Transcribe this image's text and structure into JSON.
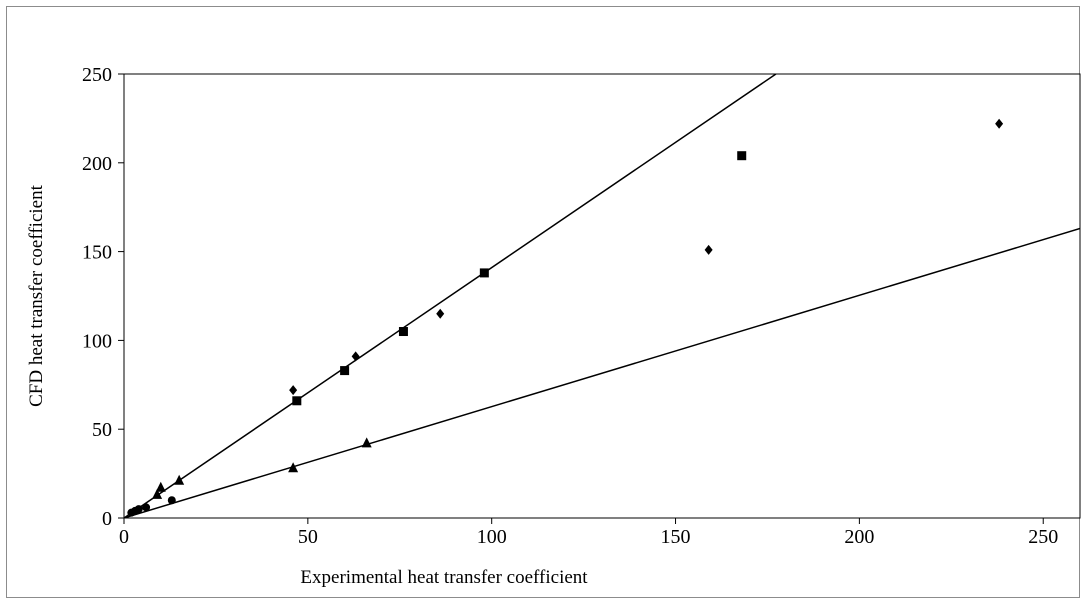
{
  "chart_data": {
    "type": "scatter",
    "title": "",
    "xlabel": "Experimental heat transfer coefficient",
    "ylabel": "CFD heat transfer coefficient",
    "xlim": [
      0,
      260
    ],
    "ylim": [
      0,
      250
    ],
    "x_ticks": [
      "0",
      "50",
      "100",
      "150",
      "200",
      "250"
    ],
    "y_ticks": [
      "0",
      "50",
      "100",
      "150",
      "200",
      "250"
    ],
    "grid": false,
    "legend": "none",
    "series": [
      {
        "marker": "diamond",
        "points": [
          [
            46,
            72
          ],
          [
            63,
            91
          ],
          [
            86,
            115
          ],
          [
            159,
            151
          ],
          [
            238,
            222
          ]
        ]
      },
      {
        "marker": "square",
        "points": [
          [
            47,
            66
          ],
          [
            60,
            83
          ],
          [
            76,
            105
          ],
          [
            98,
            138
          ],
          [
            168,
            204
          ]
        ]
      },
      {
        "marker": "triangle",
        "points": [
          [
            9,
            13
          ],
          [
            10,
            17
          ],
          [
            15,
            21
          ],
          [
            46,
            28
          ],
          [
            66,
            42
          ]
        ]
      },
      {
        "marker": "circle",
        "points": [
          [
            2,
            3
          ],
          [
            3,
            4
          ],
          [
            4,
            5
          ],
          [
            6,
            6
          ],
          [
            13,
            10
          ]
        ]
      }
    ],
    "reference_lines": [
      {
        "slope": 1.41
      },
      {
        "slope": 0.627
      }
    ],
    "colors": {
      "marker": "#000000",
      "line": "#000000",
      "axis": "#000000",
      "frame": "#8c8c8c"
    }
  }
}
